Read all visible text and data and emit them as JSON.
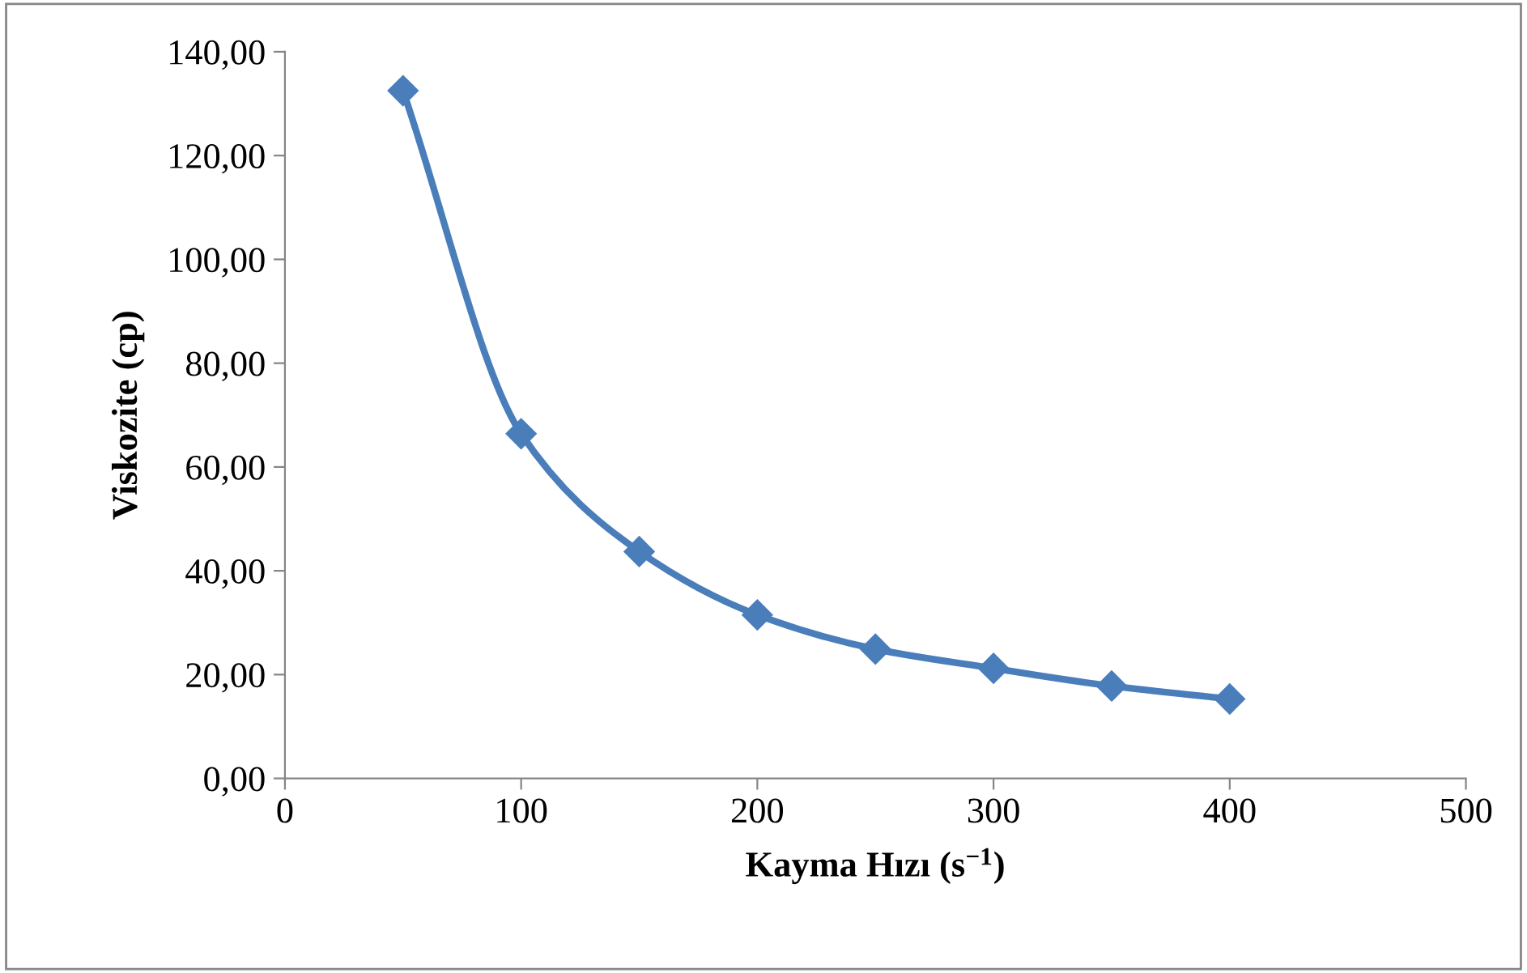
{
  "chart_data": {
    "type": "line",
    "xlabel": "Kayma Hızı (s$^{−1}$)",
    "ylabel": "Viskozite (cp)",
    "x": [
      50,
      100,
      150,
      200,
      250,
      300,
      350,
      400
    ],
    "series": [
      {
        "color": "#4a7ebb",
        "values": [
          132.5,
          66.4,
          43.7,
          31.5,
          24.9,
          21.2,
          17.8,
          15.3
        ]
      }
    ],
    "xlim": [
      0,
      500
    ],
    "xticks": [
      0,
      100,
      200,
      300,
      400,
      500
    ],
    "ylim": [
      0,
      140
    ],
    "yticks": [
      {
        "value": 0,
        "label": "0,00"
      },
      {
        "value": 20,
        "label": "20,00"
      },
      {
        "value": 40,
        "label": "40,00"
      },
      {
        "value": 60,
        "label": "60,00"
      },
      {
        "value": 80,
        "label": "80,00"
      },
      {
        "value": 100,
        "label": "100,00"
      },
      {
        "value": 120,
        "label": "120,00"
      },
      {
        "value": 140,
        "label": "140,00"
      }
    ],
    "marker": "diamond",
    "line_style": "solid",
    "grid": false,
    "legend": false
  }
}
